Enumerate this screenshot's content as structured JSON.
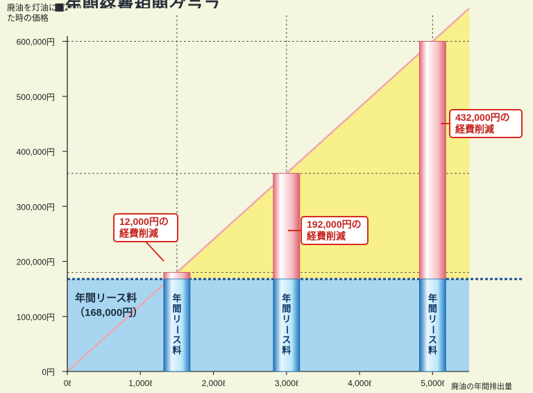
{
  "chart_data": {
    "type": "bar",
    "title": "■年間経費相関グラフ",
    "ylabel": "廃油を灯油に置き換えた時の価格",
    "xlabel": "廃油の年間排出量",
    "x_ticks": [
      {
        "value": 0,
        "label": "0ℓ"
      },
      {
        "value": 1000,
        "label": "1,000ℓ"
      },
      {
        "value": 2000,
        "label": "2,000ℓ"
      },
      {
        "value": 3000,
        "label": "3,000ℓ"
      },
      {
        "value": 4000,
        "label": "4,000ℓ"
      },
      {
        "value": 5000,
        "label": "5,000ℓ"
      }
    ],
    "y_ticks": [
      {
        "value": 0,
        "label": "0円"
      },
      {
        "value": 100000,
        "label": "100,000円"
      },
      {
        "value": 200000,
        "label": "200,000円"
      },
      {
        "value": 300000,
        "label": "300,000円"
      },
      {
        "value": 400000,
        "label": "400,000円"
      },
      {
        "value": 500000,
        "label": "500,000円"
      },
      {
        "value": 600000,
        "label": "600,000円"
      }
    ],
    "xlim": [
      0,
      5500
    ],
    "ylim": [
      0,
      660000
    ],
    "lease": {
      "label": "年間リース料",
      "value_label": "（168,000円）",
      "value": 168000
    },
    "kerosene_line": {
      "x": [
        0,
        5000,
        5500
      ],
      "y": [
        0,
        600000,
        660000
      ]
    },
    "bars": [
      {
        "x": 1500,
        "value": 180000,
        "bar_label": "年間リース料",
        "annotation_lines": [
          "12,000円の",
          "経費削減"
        ]
      },
      {
        "x": 3000,
        "value": 360000,
        "bar_label": "年間リース料",
        "annotation_lines": [
          "192,000円の",
          "経費削減"
        ]
      },
      {
        "x": 5000,
        "value": 600000,
        "bar_label": "年間リース料",
        "annotation_lines": [
          "432,000円の",
          "経費削減"
        ]
      }
    ],
    "colors": {
      "background": "#f4f6df",
      "lease_area": "#a8d6f0",
      "savings_area": "#f8f08a",
      "bar_lower": "#2f87c8",
      "bar_upper": "#ef8f95",
      "diagonal": "#f0a5b0",
      "annotation_border": "#d92a21",
      "annotation_text": "#c3221b",
      "grid": "#555555",
      "lease_line": "#1d4e9d",
      "axis_text": "#222222"
    }
  }
}
